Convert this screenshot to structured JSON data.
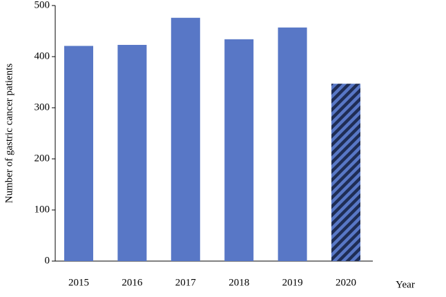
{
  "chart_data": {
    "type": "bar",
    "y_label": "Number of gastric cancer patients",
    "x_label": "Year",
    "categories": [
      "2015",
      "2016",
      "2017",
      "2018",
      "2019",
      "2020"
    ],
    "values": [
      421,
      423,
      476,
      434,
      457,
      347
    ],
    "hatch": [
      false,
      false,
      false,
      false,
      false,
      true
    ],
    "color": "#5877c6",
    "hatch_color": "#1f2d55",
    "ylim": [
      0,
      500
    ],
    "yticks": [
      0,
      100,
      200,
      300,
      400,
      500
    ],
    "grid": false
  }
}
